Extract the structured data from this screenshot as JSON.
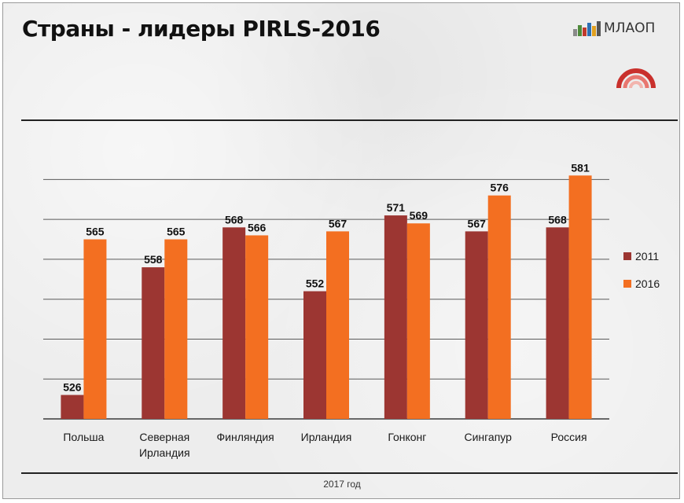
{
  "title": "Страны - лидеры PIRLS-2016",
  "logo_text": "МЛАОП",
  "footer": "2017 год",
  "colors": {
    "s2011": "#9c3632",
    "s2016": "#f36f21",
    "grid": "#5a5a5a"
  },
  "chart_data": {
    "type": "bar",
    "title": "Страны - лидеры PIRLS-2016",
    "categories": [
      [
        "Польша"
      ],
      [
        "Северная",
        "Ирландия"
      ],
      [
        "Финляндия"
      ],
      [
        "Ирландия"
      ],
      [
        "Гонконг"
      ],
      [
        "Сингапур"
      ],
      [
        "Россия"
      ]
    ],
    "series": [
      {
        "name": "2011",
        "values": [
          526,
          558,
          568,
          552,
          571,
          567,
          568
        ]
      },
      {
        "name": "2016",
        "values": [
          565,
          565,
          566,
          567,
          569,
          576,
          581
        ]
      }
    ],
    "ylim": [
      520,
      585
    ],
    "grid": true,
    "legend": "right"
  }
}
